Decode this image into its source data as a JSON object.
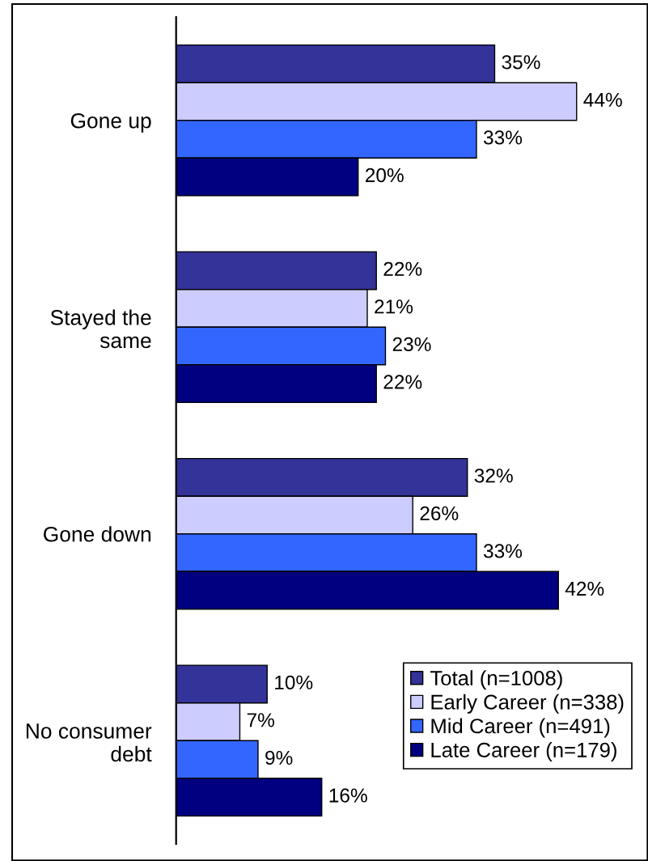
{
  "chart_data": {
    "type": "bar",
    "orientation": "horizontal",
    "categories": [
      "Gone up",
      "Stayed the\nsame",
      "Gone down",
      "No consumer\ndebt"
    ],
    "series": [
      {
        "name": "Total (n=1008)",
        "color": "#333399",
        "values": [
          35,
          22,
          32,
          10
        ],
        "value_labels": [
          "35%",
          "22%",
          "32%",
          "10%"
        ]
      },
      {
        "name": "Early Career (n=338)",
        "color": "#ccccff",
        "values": [
          44,
          21,
          26,
          7
        ],
        "value_labels": [
          "44%",
          "21%",
          "26%",
          "7%"
        ]
      },
      {
        "name": "Mid Career (n=491)",
        "color": "#3366ff",
        "values": [
          33,
          23,
          33,
          9
        ],
        "value_labels": [
          "33%",
          "23%",
          "33%",
          "9%"
        ]
      },
      {
        "name": "Late Career (n=179)",
        "color": "#000080",
        "values": [
          20,
          22,
          42,
          16
        ],
        "value_labels": [
          "20%",
          "22%",
          "42%",
          "16%"
        ]
      }
    ],
    "legend": "bottom right",
    "grid": false,
    "tick_labels": "y"
  }
}
